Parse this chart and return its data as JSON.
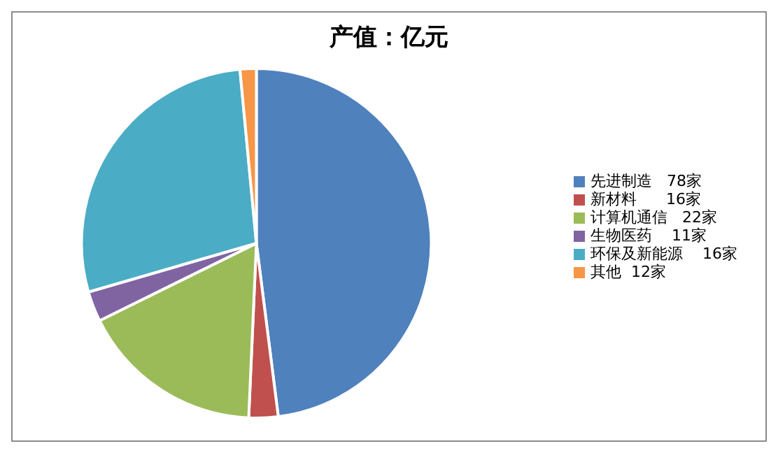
{
  "chart_data": {
    "type": "pie",
    "title": "产值：亿元",
    "categories": [
      "先进制造   78家",
      "新材料      16家",
      "计算机通信   22家",
      "生物医药    11家",
      "环保及新能源    16家",
      "其他  12家"
    ],
    "values": [
      48,
      2.7,
      17,
      2.8,
      28,
      1.5
    ],
    "colors": [
      "#4f81bd",
      "#c0504d",
      "#9bbb59",
      "#8064a2",
      "#4bacc6",
      "#f79646"
    ],
    "legend": "right"
  }
}
